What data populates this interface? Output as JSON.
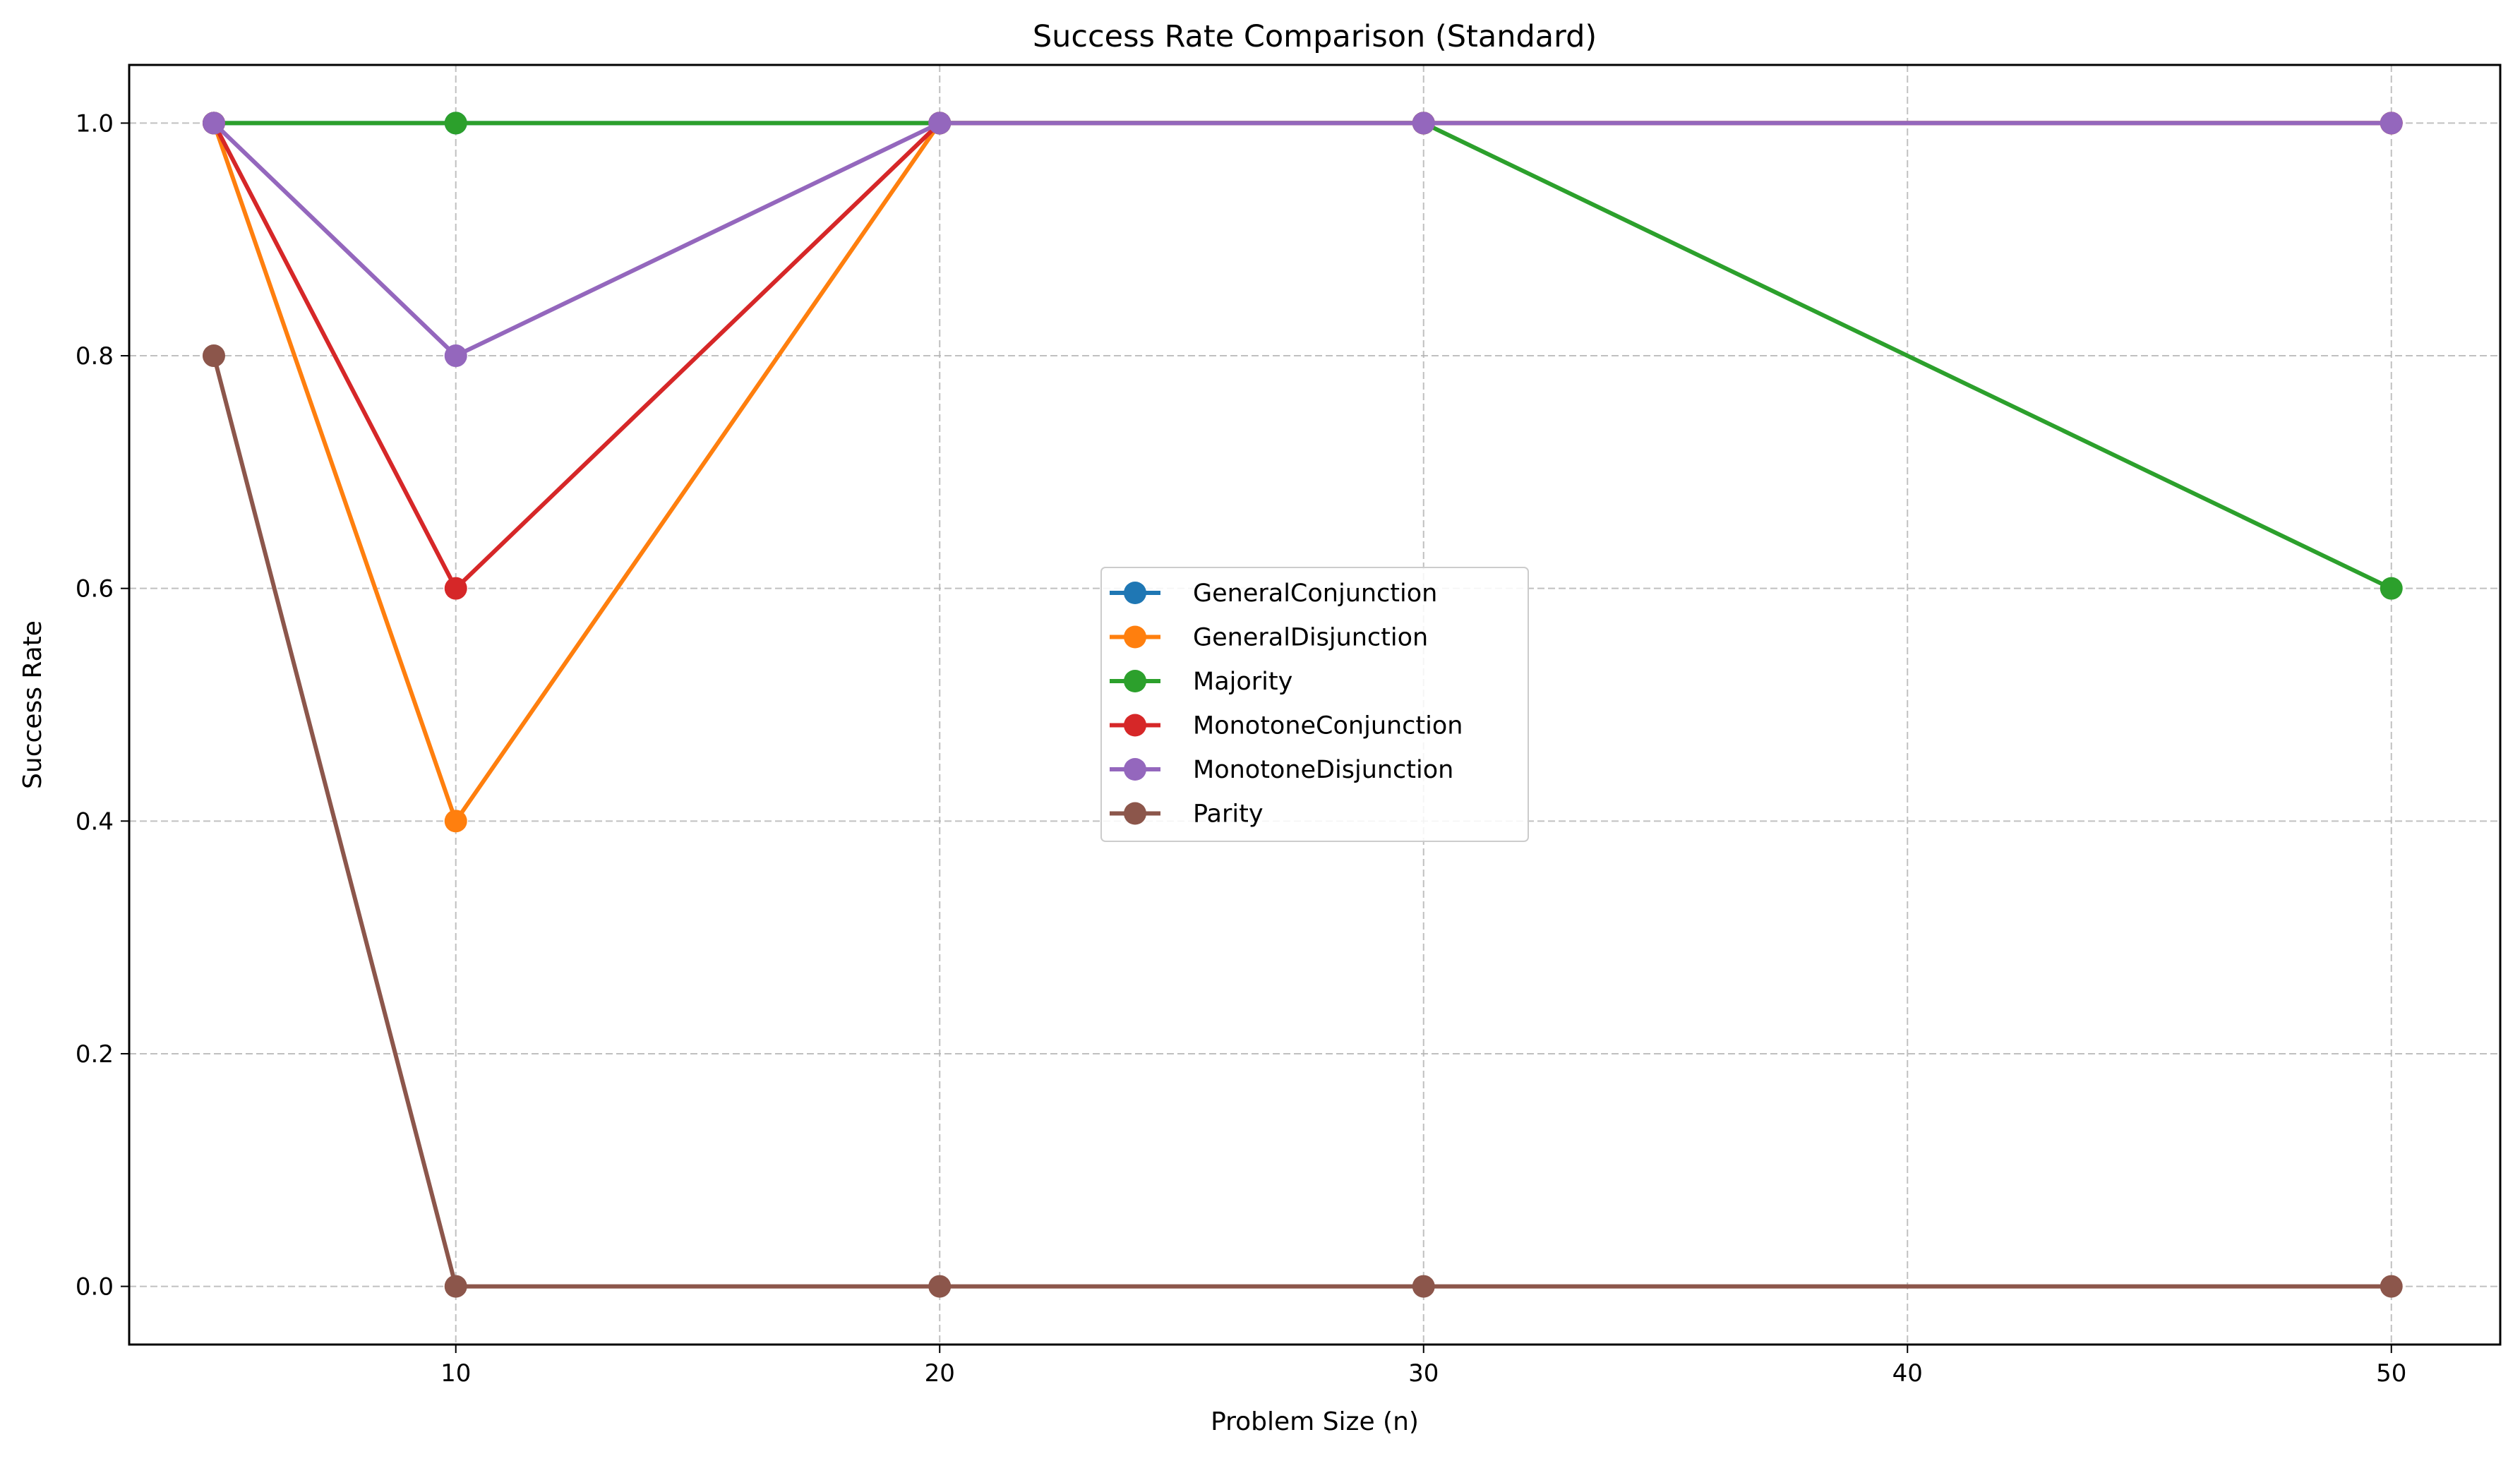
{
  "chart_data": {
    "type": "line",
    "title": "Success Rate Comparison (Standard)",
    "xlabel": "Problem Size (n)",
    "ylabel": "Success Rate",
    "xlim": [
      3.25,
      52.25
    ],
    "ylim": [
      -0.05,
      1.05
    ],
    "xticks": [
      10,
      20,
      30,
      40,
      50
    ],
    "yticks": [
      0.0,
      0.2,
      0.4,
      0.6,
      0.8,
      1.0
    ],
    "xtick_labels": [
      "10",
      "20",
      "30",
      "40",
      "50"
    ],
    "ytick_labels": [
      "0.0",
      "0.2",
      "0.4",
      "0.6",
      "0.8",
      "1.0"
    ],
    "grid": true,
    "legend_position": "center",
    "x": [
      5,
      10,
      20,
      30,
      50
    ],
    "series": [
      {
        "name": "GeneralConjunction",
        "color": "#1f77b4",
        "values": [
          1.0,
          1.0,
          1.0,
          1.0,
          1.0
        ]
      },
      {
        "name": "GeneralDisjunction",
        "color": "#ff7f0e",
        "values": [
          1.0,
          0.4,
          1.0,
          1.0,
          1.0
        ]
      },
      {
        "name": "Majority",
        "color": "#2ca02c",
        "values": [
          1.0,
          1.0,
          1.0,
          1.0,
          0.6
        ]
      },
      {
        "name": "MonotoneConjunction",
        "color": "#d62728",
        "values": [
          1.0,
          0.6,
          1.0,
          1.0,
          1.0
        ]
      },
      {
        "name": "MonotoneDisjunction",
        "color": "#9467bd",
        "values": [
          1.0,
          0.8,
          1.0,
          1.0,
          1.0
        ]
      },
      {
        "name": "Parity",
        "color": "#8c564b",
        "values": [
          0.8,
          0.0,
          0.0,
          0.0,
          0.0
        ]
      }
    ]
  }
}
